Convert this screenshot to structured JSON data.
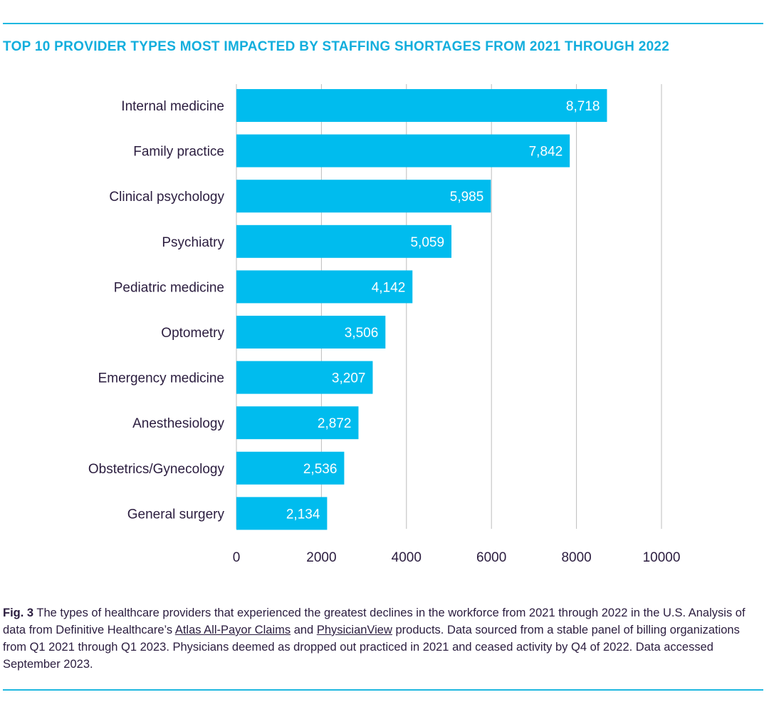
{
  "chart_data": {
    "type": "bar",
    "orientation": "horizontal",
    "title": "TOP 10 PROVIDER TYPES MOST IMPACTED BY STAFFING SHORTAGES FROM 2021 THROUGH 2022",
    "categories": [
      "Internal medicine",
      "Family practice",
      "Clinical psychology",
      "Psychiatry",
      "Pediatric medicine",
      "Optometry",
      "Emergency medicine",
      "Anesthesiology",
      "Obstetrics/Gynecology",
      "General surgery"
    ],
    "values": [
      8718,
      7842,
      5985,
      5059,
      4142,
      3506,
      3207,
      2872,
      2536,
      2134
    ],
    "value_labels": [
      "8,718",
      "7,842",
      "5,985",
      "5,059",
      "4,142",
      "3,506",
      "3,207",
      "2,872",
      "2,536",
      "2,134"
    ],
    "xlim": [
      0,
      10000
    ],
    "xticks": [
      0,
      2000,
      4000,
      6000,
      8000,
      10000
    ],
    "grid": "vertical",
    "colors": {
      "bar": "#00bcee",
      "title": "#13aedd",
      "text": "#2b1d3f",
      "grid": "#bdbdbd",
      "label": "#ffffff"
    }
  },
  "caption": {
    "fig": "Fig. 3",
    "text1": " The types of healthcare providers that experienced the greatest declines in the workforce from 2021 through 2022 in the U.S. Analysis of data from Definitive Healthcare’s ",
    "link1": "Atlas All-Payor Claims",
    "text2": " and ",
    "link2": "PhysicianView",
    "text3": " products. Data sourced from a stable panel of billing organizations from Q1 2021 through Q1 2023. Physicians deemed as dropped out practiced in 2021 and ceased activity by Q4 of 2022. Data accessed September 2023."
  }
}
